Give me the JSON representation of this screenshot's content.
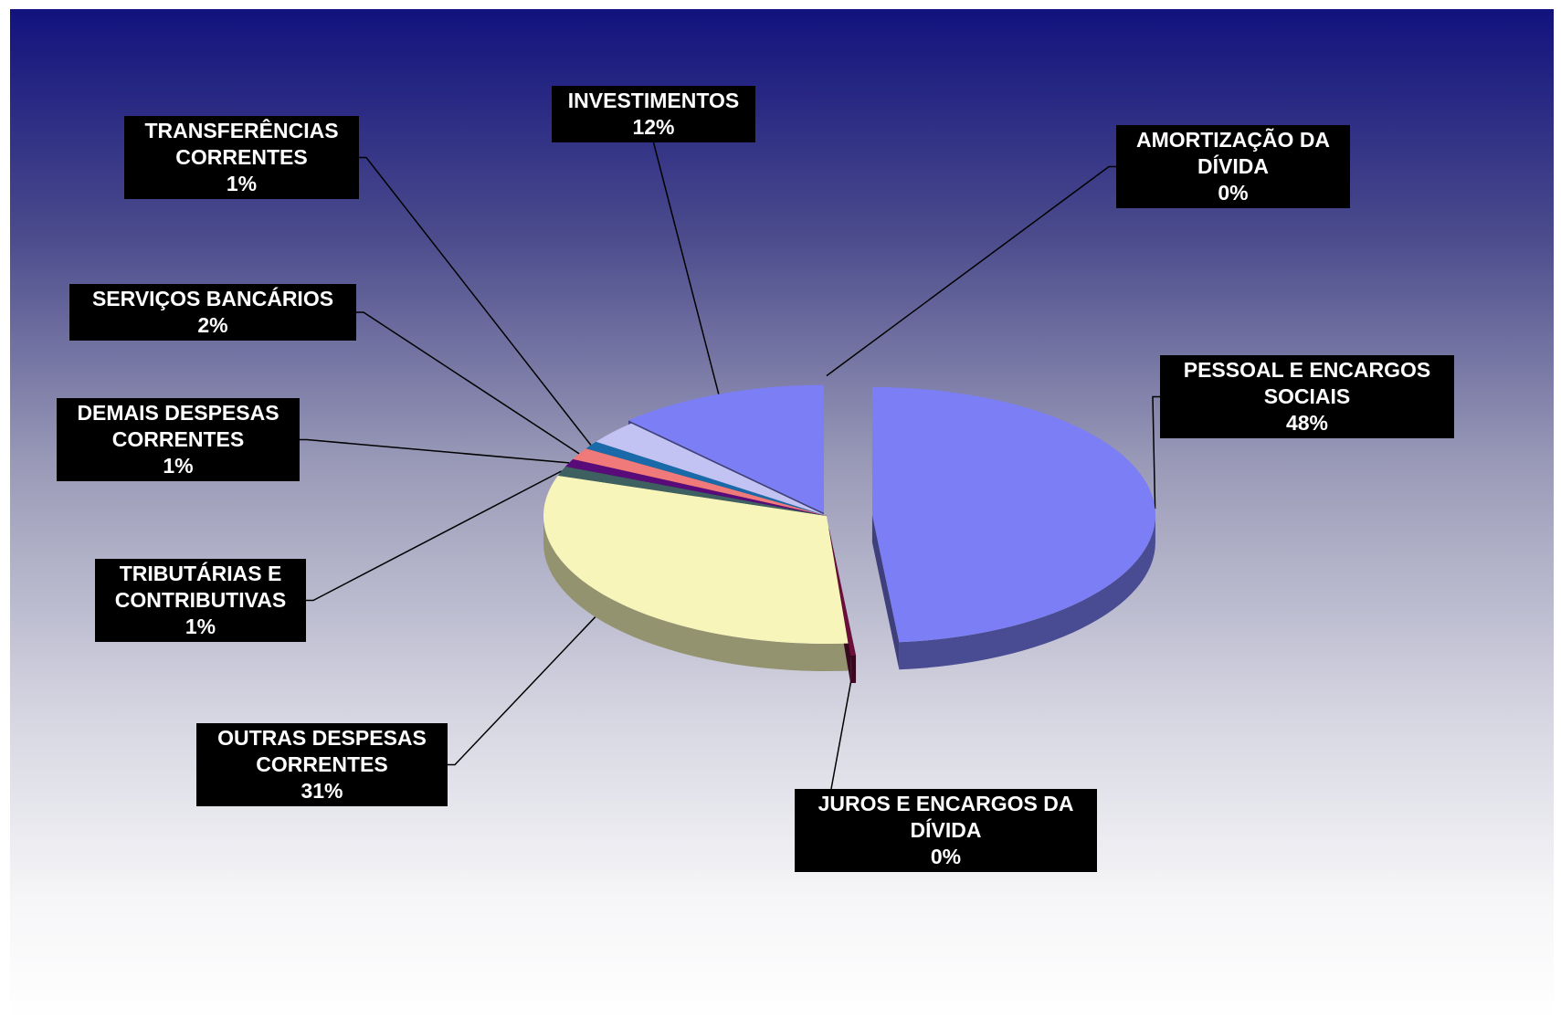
{
  "chart_data": {
    "type": "pie",
    "title": "",
    "three_d": true,
    "exploded": true,
    "slices": [
      {
        "key": "pessoal",
        "name": "PESSOAL E ENCARGOS SOCIAIS",
        "lines": [
          "PESSOAL E ENCARGOS",
          "SOCIAIS"
        ],
        "percent_label": "48%",
        "value": 48,
        "color": "#7b7ef5"
      },
      {
        "key": "juros",
        "name": "JUROS E ENCARGOS DA DÍVIDA",
        "lines": [
          "JUROS E ENCARGOS DA",
          "DÍVIDA"
        ],
        "percent_label": "0%",
        "value": 0.3,
        "color": "#6b0f3a"
      },
      {
        "key": "outras",
        "name": "OUTRAS DESPESAS CORRENTES",
        "lines": [
          "OUTRAS DESPESAS",
          "CORRENTES"
        ],
        "percent_label": "31%",
        "value": 31,
        "color": "#f7f5b9"
      },
      {
        "key": "tributarias",
        "name": "TRIBUTÁRIAS E CONTRIBUTIVAS",
        "lines": [
          "TRIBUTÁRIAS E",
          "CONTRIBUTIVAS"
        ],
        "percent_label": "1%",
        "value": 1.2,
        "color": "#3e6060"
      },
      {
        "key": "demais",
        "name": "DEMAIS DESPESAS CORRENTES",
        "lines": [
          "DEMAIS DESPESAS",
          "CORRENTES"
        ],
        "percent_label": "1%",
        "value": 1.0,
        "color": "#5a0b7a"
      },
      {
        "key": "servicos",
        "name": "SERVIÇOS BANCÁRIOS",
        "lines": [
          "SERVIÇOS BANCÁRIOS"
        ],
        "percent_label": "2%",
        "value": 1.5,
        "color": "#f07a7a"
      },
      {
        "key": "transferencias",
        "name": "TRANSFERÊNCIAS CORRENTES",
        "lines": [
          "TRANSFERÊNCIAS",
          "CORRENTES"
        ],
        "percent_label": "1%",
        "value": 1.0,
        "color": "#1a6aaa"
      },
      {
        "key": "investimentos_light",
        "name": "",
        "lines": [],
        "percent_label": "",
        "value": 3.0,
        "color": "#c3c3f3"
      },
      {
        "key": "investimentos",
        "name": "INVESTIMENTOS",
        "lines": [
          "INVESTIMENTOS"
        ],
        "percent_label": "12%",
        "value": 12,
        "color": "#7b7ef5"
      },
      {
        "key": "amortizacao",
        "name": "AMORTIZAÇÃO DA DÍVIDA",
        "lines": [
          "AMORTIZAÇÃO DA",
          "DÍVIDA"
        ],
        "percent_label": "0%",
        "value": 0,
        "color": "#7b7ef5"
      }
    ]
  }
}
